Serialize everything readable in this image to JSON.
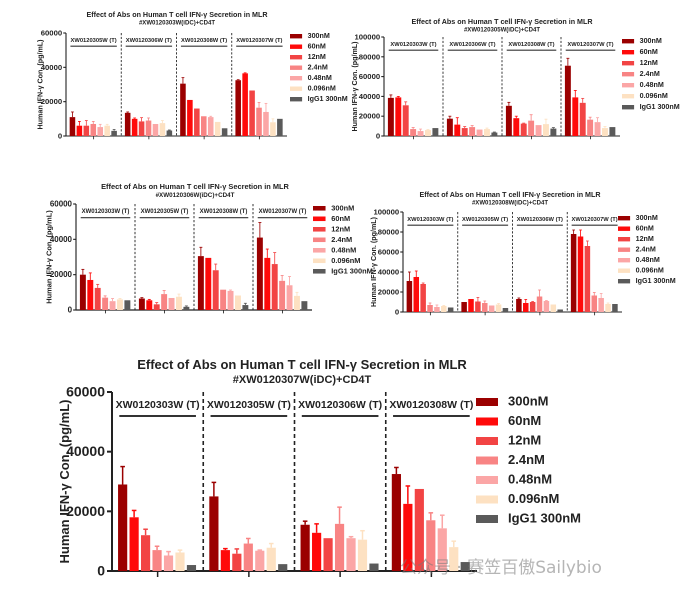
{
  "legend": [
    "300nM",
    "60nM",
    "12nM",
    "2.4nM",
    "0.48nM",
    "0.096nM",
    "IgG1 300nM"
  ],
  "colors": [
    "#9b0000",
    "#ff0a0a",
    "#f24444",
    "#f88484",
    "#fba6a6",
    "#fde1c2",
    "#5a5a5a"
  ],
  "watermark": "公众号 · 赛笠百傲Sailybio",
  "chart_data": [
    {
      "type": "bar",
      "title": "Effect of Abs on Human T cell IFN-γ Secretion in MLR",
      "subtitle": "#XW0120303W(iDC)+CD4T",
      "ylabel": "Human IFN-γ Con. (pg/mL)",
      "ylim": [
        0,
        60000
      ],
      "yticks": [
        0,
        20000,
        40000,
        60000
      ],
      "groups": [
        "XW0120305W (T)",
        "XW0120306W (T)",
        "XW0120308W (T)",
        "XW0120307W (T)"
      ],
      "values": [
        [
          11000,
          6000,
          6000,
          7000,
          5200,
          6000,
          3000
        ],
        [
          13500,
          10000,
          8500,
          9000,
          7000,
          7500,
          3200
        ],
        [
          30500,
          21000,
          16000,
          11500,
          11000,
          8200,
          4500
        ],
        [
          32500,
          36500,
          26500,
          16500,
          14000,
          8000,
          10000
        ]
      ],
      "errors": [
        [
          3000,
          2500,
          3000,
          1500,
          1600,
          800,
          800
        ],
        [
          500,
          500,
          2200,
          1500,
          0,
          1500,
          300
        ],
        [
          3500,
          0,
          0,
          0,
          500,
          0,
          0
        ],
        [
          300,
          300,
          0,
          3000,
          5000,
          2000,
          0
        ]
      ]
    },
    {
      "type": "bar",
      "title": "Effect of Abs on Human T cell IFN-γ Secretion in MLR",
      "subtitle": "#XW0120305W(iDC)+CD4T",
      "ylabel": "Human IFN-γ Con. (pg/mL)",
      "ylim": [
        0,
        100000
      ],
      "yticks": [
        0,
        20000,
        40000,
        60000,
        80000,
        100000
      ],
      "groups": [
        "XW0120303W (T)",
        "XW0120306W (T)",
        "XW0120308W (T)",
        "XW0120307W (T)"
      ],
      "values": [
        [
          38500,
          39000,
          31000,
          7000,
          5000,
          6000,
          8000
        ],
        [
          17500,
          11500,
          8000,
          9000,
          6500,
          7000,
          3500
        ],
        [
          30500,
          18000,
          12500,
          15500,
          11000,
          12000,
          7500
        ],
        [
          71000,
          39000,
          33500,
          16500,
          14000,
          8000,
          9000
        ]
      ],
      "errors": [
        [
          3000,
          1000,
          3500,
          1500,
          2000,
          500,
          0
        ],
        [
          2500,
          7000,
          1500,
          1500,
          0,
          1000,
          500
        ],
        [
          3500,
          2000,
          500,
          6000,
          0,
          5000,
          1000
        ],
        [
          7500,
          7000,
          4500,
          2500,
          4500,
          1500,
          0
        ]
      ]
    },
    {
      "type": "bar",
      "title": "Effect of Abs on Human T cell IFN-γ Secretion in MLR",
      "subtitle": "#XW0120306W(iDC)+CD4T",
      "ylabel": "Human IFN-γ Con. (pg/mL)",
      "ylim": [
        0,
        60000
      ],
      "yticks": [
        0,
        20000,
        40000,
        60000
      ],
      "groups": [
        "XW0120303W (T)",
        "XW0120305W (T)",
        "XW0120308W (T)",
        "XW0120307W (T)"
      ],
      "values": [
        [
          20000,
          17000,
          12500,
          7000,
          5000,
          6000,
          5500
        ],
        [
          6500,
          5500,
          3200,
          9000,
          6800,
          7500,
          1800
        ],
        [
          30500,
          29500,
          22500,
          11500,
          10800,
          8200,
          2800
        ],
        [
          41000,
          29500,
          26000,
          16500,
          14000,
          8000,
          5000
        ]
      ],
      "errors": [
        [
          3000,
          4000,
          2000,
          1000,
          1500,
          500,
          0
        ],
        [
          500,
          500,
          1000,
          2000,
          0,
          1500,
          500
        ],
        [
          5000,
          0,
          3500,
          0,
          500,
          0,
          1000
        ],
        [
          8500,
          5000,
          6500,
          3000,
          5000,
          2000,
          0
        ]
      ]
    },
    {
      "type": "bar",
      "title": "Effect of Abs on Human T cell IFN-γ Secretion in MLR",
      "subtitle": "#XW0120308W(iDC)+CD4T",
      "ylabel": "Human IFN-γ Con. (pg/mL)",
      "ylim": [
        0,
        100000
      ],
      "yticks": [
        0,
        20000,
        40000,
        60000,
        80000,
        100000
      ],
      "groups": [
        "XW0120303W (T)",
        "XW0120305W (T)",
        "XW0120306W (T)",
        "XW0120307W (T)"
      ],
      "values": [
        [
          31000,
          35000,
          28000,
          7000,
          5000,
          6000,
          4500
        ],
        [
          10000,
          13000,
          10500,
          9000,
          6500,
          7500,
          4000
        ],
        [
          13000,
          9000,
          10000,
          15500,
          11000,
          7500,
          2500
        ],
        [
          78000,
          75500,
          66000,
          16500,
          14000,
          8000,
          8000
        ]
      ],
      "errors": [
        [
          9000,
          6000,
          1000,
          2000,
          2000,
          500,
          0
        ],
        [
          0,
          0,
          4000,
          2000,
          0,
          1000,
          0
        ],
        [
          1000,
          3500,
          500,
          6500,
          500,
          0,
          0
        ],
        [
          4000,
          6500,
          5000,
          3000,
          4500,
          1000,
          0
        ]
      ]
    },
    {
      "type": "bar",
      "title": "Effect of Abs on Human T cell IFN-γ Secretion in MLR",
      "subtitle": "#XW0120307W(iDC)+CD4T",
      "ylabel": "Human IFN-γ Con. (pg/mL)",
      "ylim": [
        0,
        60000
      ],
      "yticks": [
        0,
        20000,
        40000,
        60000
      ],
      "groups": [
        "XW0120303W (T)",
        "XW0120305W (T)",
        "XW0120306W (T)",
        "XW0120308W (T)"
      ],
      "values": [
        [
          29000,
          18000,
          12000,
          7000,
          5200,
          6200,
          2000
        ],
        [
          25000,
          7000,
          5800,
          9200,
          6800,
          7800,
          2300
        ],
        [
          15500,
          12800,
          11000,
          15800,
          11000,
          10500,
          2500
        ],
        [
          32500,
          22500,
          27500,
          17000,
          14300,
          8000,
          3000
        ]
      ],
      "errors": [
        [
          6000,
          2300,
          2000,
          1300,
          1300,
          800,
          0
        ],
        [
          4700,
          500,
          1600,
          1700,
          200,
          1400,
          0
        ],
        [
          1200,
          3000,
          0,
          5600,
          500,
          3000,
          0
        ],
        [
          2200,
          6000,
          0,
          2500,
          4400,
          2000,
          0
        ]
      ]
    }
  ]
}
